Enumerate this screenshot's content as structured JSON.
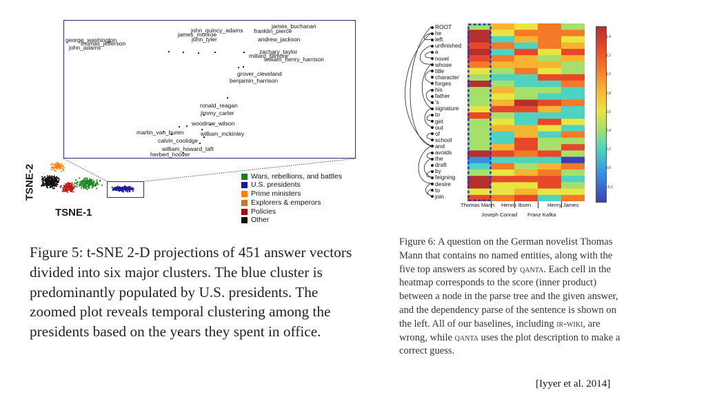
{
  "figure5": {
    "zoom_names": [
      {
        "text": "james_buchanan"
      },
      {
        "text": "john_quincy_adams"
      },
      {
        "text": "franklin_pierce"
      },
      {
        "text": "james_monroe"
      },
      {
        "text": "george_washington"
      },
      {
        "text": "thomas_jefferson"
      },
      {
        "text": "john_adams"
      },
      {
        "text": "john_tyler"
      },
      {
        "text": "andrew_jackson"
      },
      {
        "text": "zachary_taylor"
      },
      {
        "text": "millard_fillmore"
      },
      {
        "text": "william_henry_harrison"
      },
      {
        "text": "grover_cleveland"
      },
      {
        "text": "benjamin_harrison"
      },
      {
        "text": "ronald_reagan"
      },
      {
        "text": "jimmy_carter"
      },
      {
        "text": "woodrow_wilson"
      },
      {
        "text": "martin_van_buren"
      },
      {
        "text": "william_mckinley"
      },
      {
        "text": "calvin_coolidge"
      },
      {
        "text": "william_howard_taft"
      },
      {
        "text": "herbert_hoover"
      }
    ],
    "axis_x": "TSNE-1",
    "axis_y": "TSNE-2",
    "legend": [
      {
        "label": "Wars, rebellions, and battles",
        "color": "#1f7a1f"
      },
      {
        "label": "U.S. presidents",
        "color": "#1a1a8c"
      },
      {
        "label": "Prime ministers",
        "color": "#ff7f0e"
      },
      {
        "label": "Explorers & emperors",
        "color": "#c47a2a"
      },
      {
        "label": "Policies",
        "color": "#a01010"
      },
      {
        "label": "Other",
        "color": "#111111"
      }
    ],
    "caption": "Figure 5: t-SNE 2-D projections of 451 answer vectors divided into six major clusters. The blue cluster is predominantly populated by U.S. presidents. The zoomed plot reveals temporal clustering among the presidents based on the years they spent in office."
  },
  "figure6": {
    "tokens": [
      "ROOT",
      "he",
      "left",
      "unfinished",
      "a",
      "novel",
      "whose",
      "title",
      "character",
      "forges",
      "his",
      "father",
      "'s",
      "signature",
      "to",
      "get",
      "out",
      "of",
      "school",
      "and",
      "avoids",
      "the",
      "draft",
      "by",
      "feigning",
      "desire",
      "to",
      "join"
    ],
    "answers_top": [
      "Thomas Mann",
      "Henrik Ibsen",
      "Henry James"
    ],
    "answers_bottom": [
      "Joseph Conrad",
      "Franz Kafka"
    ],
    "colorbar_ticks": [
      "1.4",
      "1.2",
      "1.0",
      "0.8",
      "0.6",
      "0.4",
      "0.2",
      "0.0",
      "−0.2"
    ],
    "caption_part1": "Figure 6: A question on the German novelist Thomas Mann that contains no named entities, along with the five top answers as scored by ",
    "caption_sc1": "qanta",
    "caption_part2": ". Each cell in the heatmap corresponds to the score (inner product) between a node in the parse tree and the given answer, and the dependency parse of the sentence is shown on the left. All of our baselines, including ",
    "caption_sc2": "ir-wiki",
    "caption_part3": ", are wrong, while ",
    "caption_sc3": "qanta",
    "caption_part4": " uses the plot description to make a correct guess."
  },
  "citation": "[Iyyer et al. 2014]"
}
